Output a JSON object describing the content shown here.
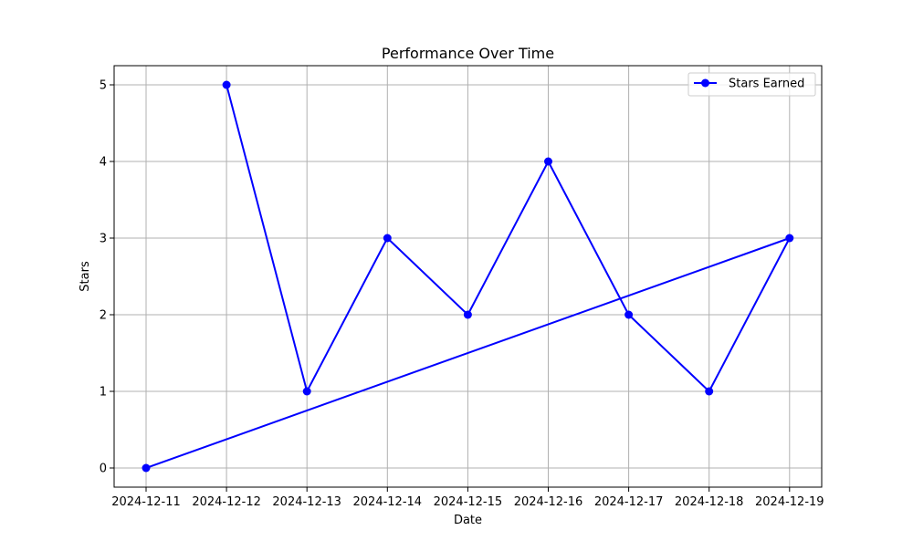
{
  "chart_data": {
    "type": "line",
    "title": "Performance Over Time",
    "xlabel": "Date",
    "ylabel": "Stars",
    "series": [
      {
        "name": "Stars Earned",
        "color": "#0000ff",
        "marker": "circle",
        "points": [
          {
            "x": "2024-12-11",
            "y": 0
          },
          {
            "x": "2024-12-19",
            "y": 3
          },
          {
            "x": "2024-12-18",
            "y": 1
          },
          {
            "x": "2024-12-17",
            "y": 2
          },
          {
            "x": "2024-12-16",
            "y": 4
          },
          {
            "x": "2024-12-15",
            "y": 2
          },
          {
            "x": "2024-12-14",
            "y": 3
          },
          {
            "x": "2024-12-13",
            "y": 1
          },
          {
            "x": "2024-12-12",
            "y": 5
          }
        ]
      }
    ],
    "x_ticks": [
      "2024-12-11",
      "2024-12-12",
      "2024-12-13",
      "2024-12-14",
      "2024-12-15",
      "2024-12-16",
      "2024-12-17",
      "2024-12-18",
      "2024-12-19"
    ],
    "y_ticks": [
      0,
      1,
      2,
      3,
      4,
      5
    ],
    "ylim": [
      -0.25,
      5.25
    ],
    "grid": true,
    "legend_position": "top-right"
  }
}
